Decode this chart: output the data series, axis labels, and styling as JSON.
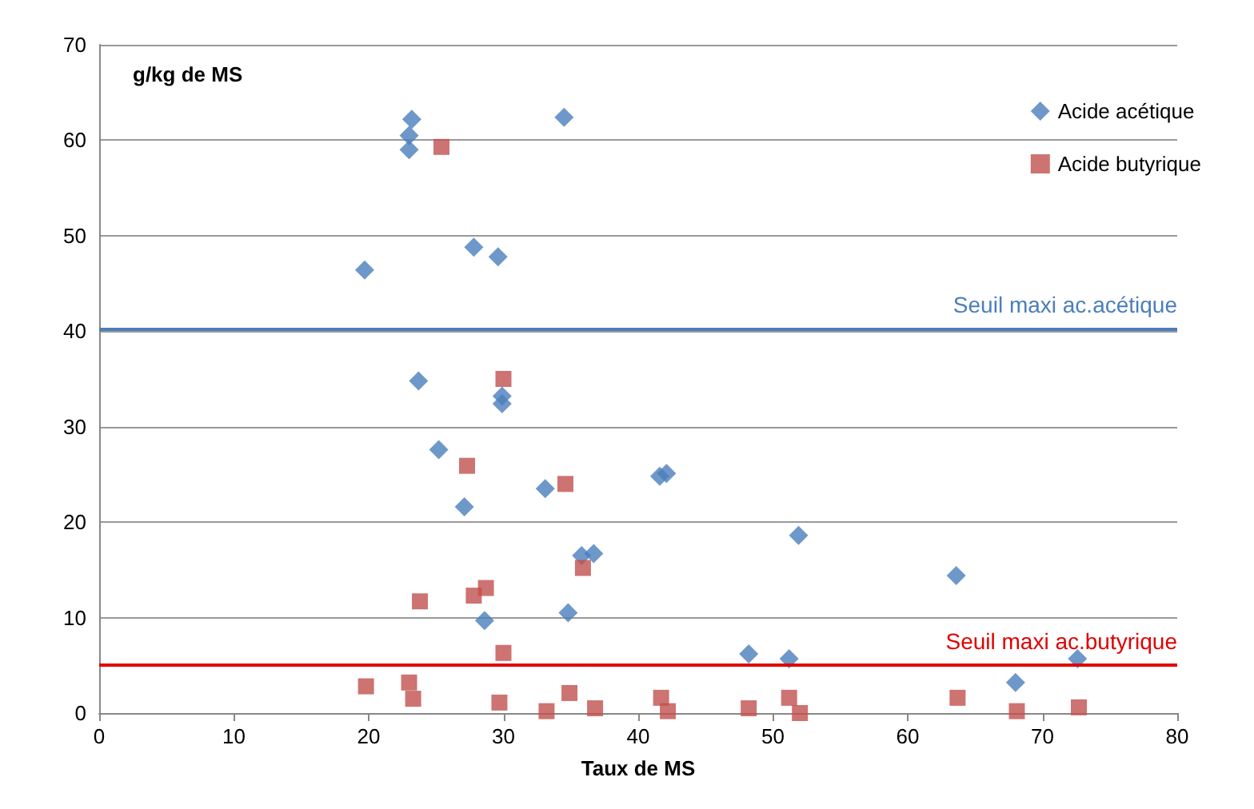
{
  "chart_data": {
    "type": "scatter",
    "xlabel": "Taux de MS",
    "ylabel": "g/kg de MS",
    "xlim": [
      0,
      80
    ],
    "xticks": [
      0,
      10,
      20,
      30,
      40,
      50,
      60,
      70,
      80
    ],
    "ylim": [
      0,
      70
    ],
    "yticks": [
      0,
      10,
      20,
      30,
      40,
      50,
      60,
      70
    ],
    "grid": "y",
    "legend": "top right",
    "series": [
      {
        "name": "Acide acétique",
        "color": "#4a7ebb",
        "marker": "diamond",
        "x": [
          23.2,
          34.5,
          23.0,
          23.0,
          27.8,
          29.6,
          19.7,
          23.7,
          29.9,
          29.9,
          25.2,
          33.1,
          27.1,
          41.6,
          42.1,
          35.8,
          36.7,
          28.6,
          34.8,
          51.9,
          63.6,
          48.2,
          51.2,
          68.0,
          72.6
        ],
        "values": [
          62.2,
          62.4,
          60.5,
          59.0,
          48.8,
          47.8,
          46.4,
          34.8,
          33.2,
          32.4,
          27.6,
          23.5,
          21.6,
          24.8,
          25.1,
          16.5,
          16.7,
          9.7,
          10.5,
          18.6,
          14.4,
          6.2,
          5.7,
          3.2,
          5.7
        ]
      },
      {
        "name": "Acide butyrique",
        "color": "#c0504d",
        "marker": "square",
        "x": [
          25.4,
          30.0,
          27.3,
          34.6,
          35.9,
          28.7,
          27.8,
          23.8,
          30.0,
          19.8,
          23.0,
          23.3,
          29.7,
          33.2,
          34.9,
          36.8,
          41.7,
          42.2,
          48.2,
          51.2,
          52.0,
          63.7,
          68.1,
          72.7
        ],
        "values": [
          59.3,
          35.0,
          25.9,
          24.0,
          15.2,
          13.1,
          12.3,
          11.7,
          6.3,
          2.8,
          3.2,
          1.5,
          1.1,
          0.2,
          2.1,
          0.5,
          1.6,
          0.2,
          0.5,
          1.6,
          0,
          1.6,
          0.2,
          0.6
        ]
      }
    ],
    "ref_lines": [
      {
        "axis": "y",
        "value": 40.3,
        "label": "Seuil maxi ac.acétique",
        "color": "#4a7ebb"
      },
      {
        "axis": "y",
        "value": 5,
        "label": "Seuil maxi ac.butyrique",
        "color": "#e00000"
      }
    ]
  }
}
